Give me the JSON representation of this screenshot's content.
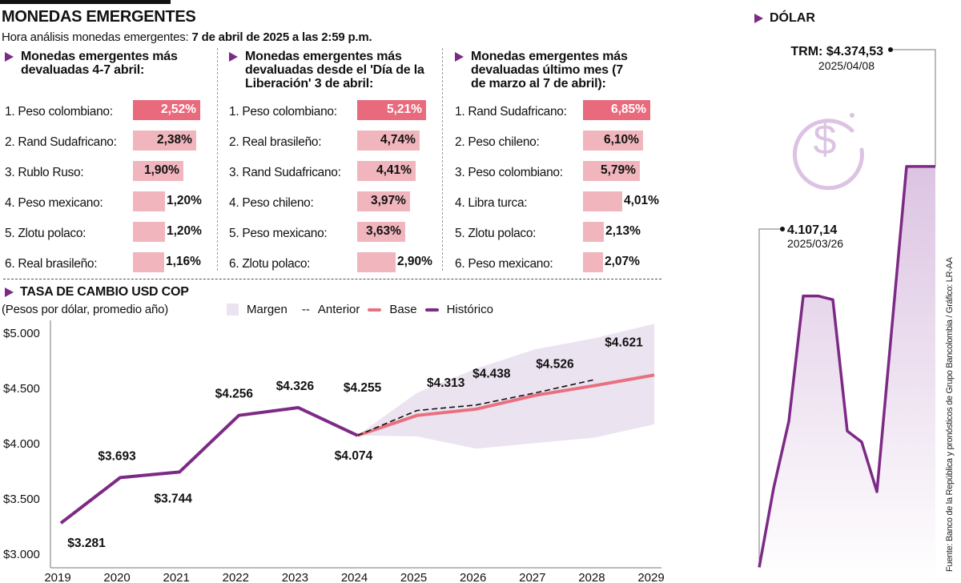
{
  "header": {
    "title": "MONEDAS EMERGENTES",
    "subtitle_prefix": "Hora análisis monedas emergentes:",
    "subtitle_time": "7 de abril de 2025 a las 2:59 p.m."
  },
  "rankings": [
    {
      "heading": "Monedas emergentes más devaluadas 4-7 abril:",
      "items": [
        {
          "label": "1. Peso colombiano:",
          "value": 2.52,
          "display": "2,52%"
        },
        {
          "label": "2. Rand Sudafricano:",
          "value": 2.38,
          "display": "2,38%"
        },
        {
          "label": "3. Rublo Ruso:",
          "value": 1.9,
          "display": "1,90%"
        },
        {
          "label": "4. Peso mexicano:",
          "value": 1.2,
          "display": "1,20%"
        },
        {
          "label": "5. Zlotu polaco:",
          "value": 1.2,
          "display": "1,20%"
        },
        {
          "label": "6. Real brasileño:",
          "value": 1.16,
          "display": "1,16%"
        }
      ]
    },
    {
      "heading": "Monedas emergentes más devaluadas desde el 'Día de la Liberación' 3 de abril:",
      "items": [
        {
          "label": "1. Peso colombiano:",
          "value": 5.21,
          "display": "5,21%"
        },
        {
          "label": "2. Real brasileño:",
          "value": 4.74,
          "display": "4,74%"
        },
        {
          "label": "3. Rand Sudafricano:",
          "value": 4.41,
          "display": "4,41%"
        },
        {
          "label": "4. Peso chileno:",
          "value": 3.97,
          "display": "3,97%"
        },
        {
          "label": "5. Peso mexicano:",
          "value": 3.63,
          "display": "3,63%"
        },
        {
          "label": "6. Zlotu polaco:",
          "value": 2.9,
          "display": "2,90%"
        }
      ]
    },
    {
      "heading": "Monedas emergentes más devaluadas último mes (7 de marzo al 7 de abril):",
      "items": [
        {
          "label": "1. Rand Sudafricano:",
          "value": 6.85,
          "display": "6,85%"
        },
        {
          "label": "2. Peso chileno:",
          "value": 6.1,
          "display": "6,10%"
        },
        {
          "label": "3. Peso colombiano:",
          "value": 5.79,
          "display": "5,79%"
        },
        {
          "label": "4. Libra turca:",
          "value": 4.01,
          "display": "4,01%"
        },
        {
          "label": "5. Zlotu polaco:",
          "value": 2.13,
          "display": "2,13%"
        },
        {
          "label": "6. Peso mexicano:",
          "value": 2.07,
          "display": "2,07%"
        }
      ]
    }
  ],
  "colors": {
    "accent": "#7d2a86",
    "top_bar": "#ea6a7d",
    "bar": "#f1b6bd",
    "base": "#e8707f",
    "margin": "#ece3f1",
    "dollar_fill": "#dcc4e2",
    "icon": "#dcc2e3"
  },
  "chart_data": [
    {
      "type": "line",
      "title": "TASA DE CAMBIO USD COP",
      "subtitle": "(Pesos por dólar, promedio año)",
      "xlabel": "",
      "ylabel": "",
      "ylim": [
        3000,
        5000
      ],
      "yticks": [
        {
          "value": 5000,
          "label": "$5.000"
        },
        {
          "value": 4500,
          "label": "$4.500"
        },
        {
          "value": 4000,
          "label": "$4.000"
        },
        {
          "value": 3500,
          "label": "$3.500"
        },
        {
          "value": 3000,
          "label": "$3.000"
        }
      ],
      "x": [
        "2019",
        "2020",
        "2021",
        "2022",
        "2023",
        "2024",
        "2025",
        "2026",
        "2027",
        "2028",
        "2029"
      ],
      "legend": [
        "Margen",
        "Anterior",
        "Base",
        "Histórico"
      ],
      "legend_labels": {
        "margin": "Margen",
        "anterior": "Anterior",
        "base": "Base",
        "historico": "Histórico"
      },
      "legend_position": "top",
      "series": [
        {
          "name": "Histórico",
          "x": [
            "2019",
            "2020",
            "2021",
            "2022",
            "2023",
            "2024"
          ],
          "values": [
            3281,
            3693,
            3744,
            4256,
            4326,
            4074
          ]
        },
        {
          "name": "Base",
          "x": [
            "2024",
            "2025",
            "2026",
            "2027",
            "2028",
            "2029"
          ],
          "values": [
            4074,
            4255,
            4313,
            4438,
            4526,
            4621
          ]
        },
        {
          "name": "Anterior",
          "x": [
            "2024",
            "2025",
            "2026",
            "2027",
            "2028"
          ],
          "values": [
            4074,
            4300,
            4350,
            4460,
            4580
          ]
        },
        {
          "name": "Margen",
          "x": [
            "2024",
            "2025",
            "2026",
            "2027",
            "2028",
            "2029"
          ],
          "upper": [
            4074,
            4460,
            4680,
            4855,
            4955,
            5085
          ],
          "lower": [
            4074,
            4065,
            3955,
            4005,
            4055,
            4175
          ]
        }
      ],
      "data_labels": [
        {
          "text": "$3.281",
          "x": "2019"
        },
        {
          "text": "$3.693",
          "x": "2020"
        },
        {
          "text": "$3.744",
          "x": "2021"
        },
        {
          "text": "$4.256",
          "x": "2022"
        },
        {
          "text": "$4.326",
          "x": "2023"
        },
        {
          "text": "$4.074",
          "x": "2024"
        },
        {
          "text": "$4.255",
          "x": "2025"
        },
        {
          "text": "$4.313",
          "x": "2026"
        },
        {
          "text": "$4.438",
          "x": "2027"
        },
        {
          "text": "$4.526",
          "x": "2028"
        },
        {
          "text": "$4.621",
          "x": "2029"
        }
      ]
    },
    {
      "type": "area",
      "title": "DÓLAR",
      "ylim": [
        4040,
        4420
      ],
      "values": [
        4045,
        4110,
        4165,
        4268,
        4268,
        4265,
        4157,
        4148,
        4107.14,
        4374.53,
        4374.53
      ],
      "annotations": [
        {
          "value": "TRM: $4.374,53",
          "date": "2025/04/08"
        },
        {
          "value": "4.107,14",
          "date": "2025/03/26"
        }
      ]
    }
  ],
  "dollar": {
    "title": "DÓLAR",
    "icon": "dollar-circle-icon",
    "trm_label": "TRM: $4.374,53",
    "trm_date": "2025/04/08",
    "low_label": "4.107,14",
    "low_date": "2025/03/26"
  },
  "source": "Fuente: Banco de la República y pronósticos de Grupo Bancolombia / Gráfico: LR-AA"
}
